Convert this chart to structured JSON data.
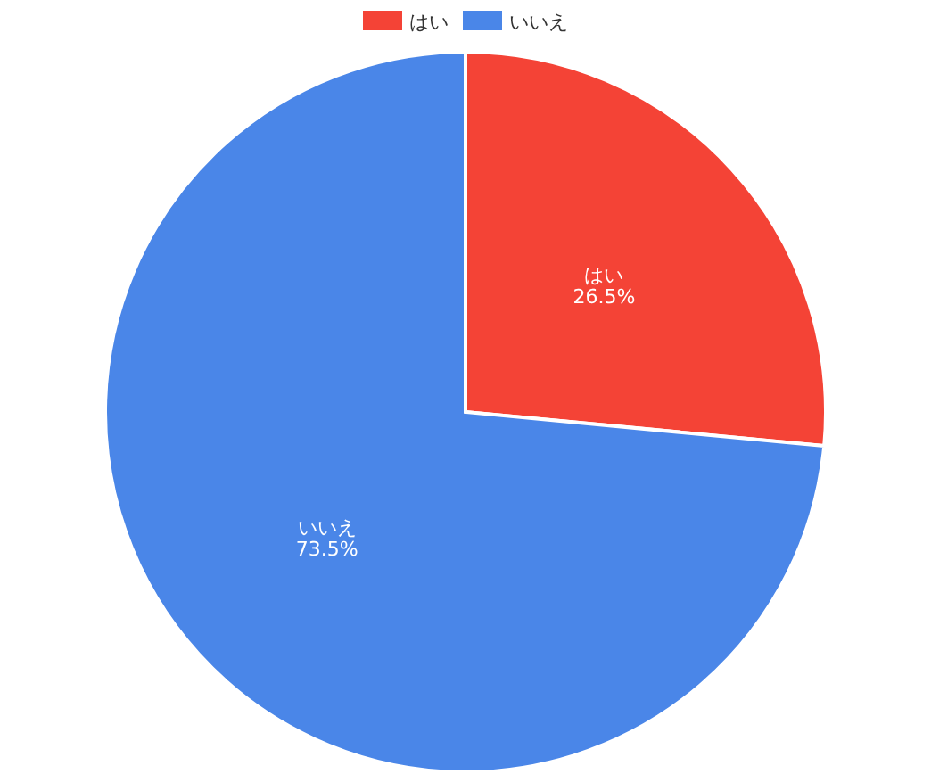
{
  "chart_data": {
    "type": "pie",
    "categories": [
      "はい",
      "いいえ"
    ],
    "values": [
      26.5,
      73.5
    ],
    "colors": [
      "#f44336",
      "#4a86e8"
    ],
    "value_labels": [
      "26.5%",
      "73.5%"
    ],
    "legend": "top"
  }
}
